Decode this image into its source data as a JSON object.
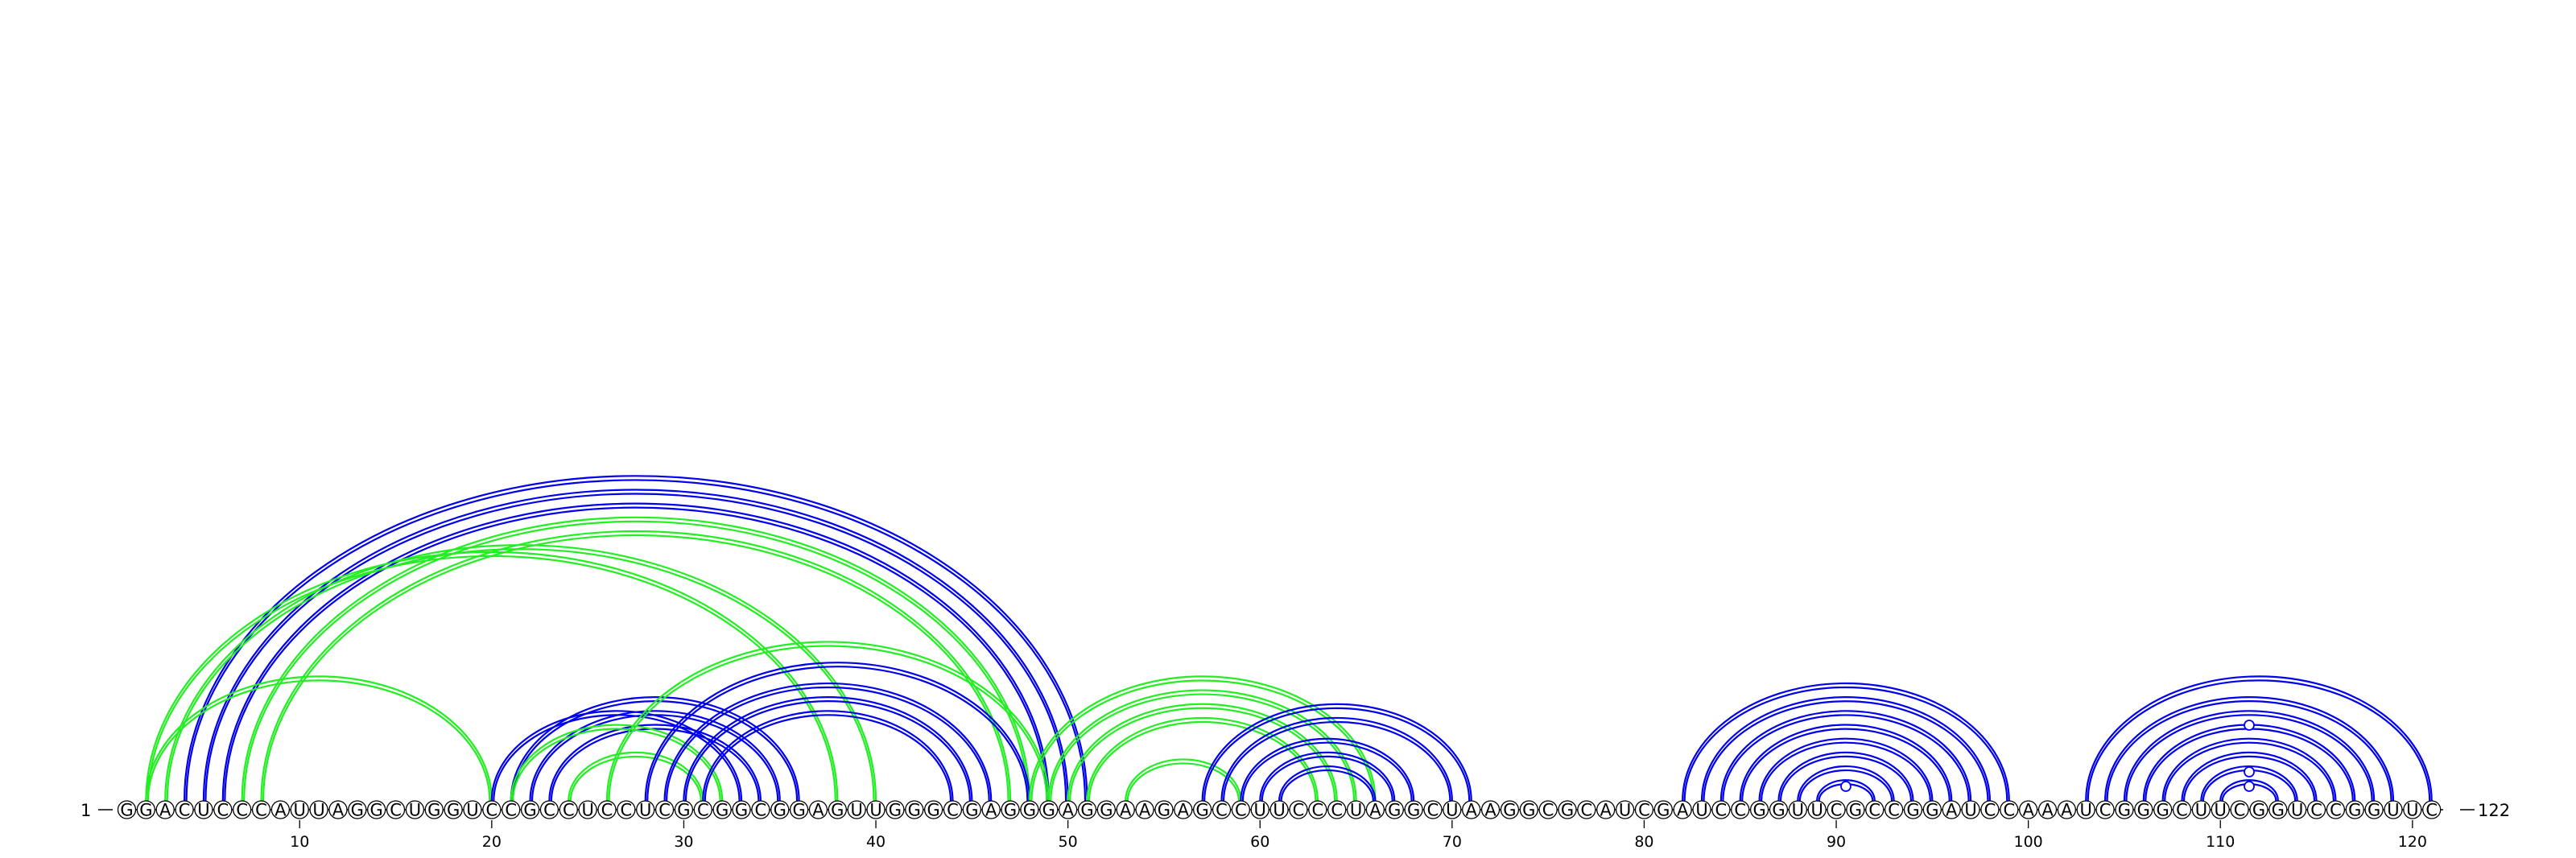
{
  "sequence": "GGACUCCCAUUAGGCUGGUCCGCCUCCUCGCGGCGGAGUUGGGCGAGGGAGGAAGAGCCUUCCCUAGGCUAAGGCGCAUCGAUCCGGUUCGCCGGAUCCAAAUCGGGCUUCGGUCCGGUUC",
  "start_label": "1",
  "end_label": "122",
  "tick_labels": [
    "10",
    "20",
    "30",
    "40",
    "50",
    "60",
    "70",
    "80",
    "90",
    "100",
    "110",
    "120"
  ],
  "colors": {
    "blue": "#0000ee",
    "green": "#22ee22"
  },
  "arcs": [
    {
      "i": 4,
      "j": 51,
      "color": "blue"
    },
    {
      "i": 5,
      "j": 50,
      "color": "blue"
    },
    {
      "i": 6,
      "j": 49,
      "color": "blue"
    },
    {
      "i": 7,
      "j": 48,
      "color": "green"
    },
    {
      "i": 8,
      "j": 47,
      "color": "green"
    },
    {
      "i": 2,
      "j": 38,
      "color": "green"
    },
    {
      "i": 3,
      "j": 40,
      "color": "green"
    },
    {
      "i": 2,
      "j": 20,
      "color": "green"
    },
    {
      "i": 21,
      "j": 36,
      "color": "blue"
    },
    {
      "i": 22,
      "j": 35,
      "color": "blue"
    },
    {
      "i": 23,
      "j": 34,
      "color": "blue"
    },
    {
      "i": 20,
      "j": 33,
      "color": "blue"
    },
    {
      "i": 21,
      "j": 32,
      "color": "green"
    },
    {
      "i": 24,
      "j": 31,
      "color": "green"
    },
    {
      "i": 26,
      "j": 49,
      "color": "green"
    },
    {
      "i": 28,
      "j": 48,
      "color": "blue"
    },
    {
      "i": 29,
      "j": 46,
      "color": "blue"
    },
    {
      "i": 30,
      "j": 45,
      "color": "blue"
    },
    {
      "i": 31,
      "j": 44,
      "color": "blue"
    },
    {
      "i": 48,
      "j": 66,
      "color": "green"
    },
    {
      "i": 49,
      "j": 65,
      "color": "green"
    },
    {
      "i": 50,
      "j": 64,
      "color": "green"
    },
    {
      "i": 51,
      "j": 63,
      "color": "green"
    },
    {
      "i": 53,
      "j": 59,
      "color": "green"
    },
    {
      "i": 57,
      "j": 71,
      "color": "blue"
    },
    {
      "i": 58,
      "j": 70,
      "color": "blue"
    },
    {
      "i": 59,
      "j": 68,
      "color": "blue"
    },
    {
      "i": 60,
      "j": 67,
      "color": "blue"
    },
    {
      "i": 61,
      "j": 66,
      "color": "blue"
    },
    {
      "i": 82,
      "j": 99,
      "color": "blue"
    },
    {
      "i": 83,
      "j": 98,
      "color": "blue"
    },
    {
      "i": 84,
      "j": 97,
      "color": "blue"
    },
    {
      "i": 85,
      "j": 96,
      "color": "blue"
    },
    {
      "i": 86,
      "j": 95,
      "color": "blue"
    },
    {
      "i": 87,
      "j": 94,
      "color": "blue"
    },
    {
      "i": 88,
      "j": 93,
      "color": "blue"
    },
    {
      "i": 89,
      "j": 92,
      "color": "blue"
    },
    {
      "i": 103,
      "j": 121,
      "color": "blue"
    },
    {
      "i": 104,
      "j": 119,
      "color": "blue"
    },
    {
      "i": 105,
      "j": 118,
      "color": "blue"
    },
    {
      "i": 106,
      "j": 117,
      "color": "blue"
    },
    {
      "i": 107,
      "j": 116,
      "color": "blue"
    },
    {
      "i": 108,
      "j": 115,
      "color": "blue"
    },
    {
      "i": 109,
      "j": 114,
      "color": "blue"
    },
    {
      "i": 110,
      "j": 113,
      "color": "blue"
    }
  ]
}
